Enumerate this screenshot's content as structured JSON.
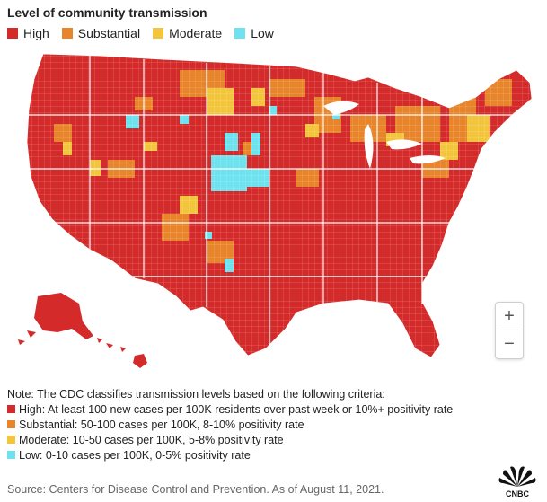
{
  "title": "Level of community transmission",
  "legend": [
    {
      "label": "High",
      "color": "#d42a2a"
    },
    {
      "label": "Substantial",
      "color": "#e8842a"
    },
    {
      "label": "Moderate",
      "color": "#f2c53c"
    },
    {
      "label": "Low",
      "color": "#6ee3ef"
    }
  ],
  "map": {
    "icons": [
      "us-county-map",
      "alaska-map",
      "hawaii-map"
    ],
    "zoom": {
      "in_label": "+",
      "out_label": "−"
    }
  },
  "notes": {
    "intro": "Note: The CDC classifies transmission levels based on the following criteria:",
    "items": [
      {
        "text": "High: At least 100 new cases per 100K residents over past week or 10%+ positivity rate",
        "color": "#d42a2a"
      },
      {
        "text": "Substantial: 50-100 cases per 100K, 8-10% positivity rate",
        "color": "#e8842a"
      },
      {
        "text": "Moderate: 10-50 cases per 100K, 5-8% positivity rate",
        "color": "#f2c53c"
      },
      {
        "text": "Low: 0-10 cases per 100K, 0-5% positivity rate",
        "color": "#6ee3ef"
      }
    ]
  },
  "source": "Source: Centers for Disease Control and Prevention. As of August 11, 2021.",
  "branding": {
    "logo": "CNBC"
  }
}
